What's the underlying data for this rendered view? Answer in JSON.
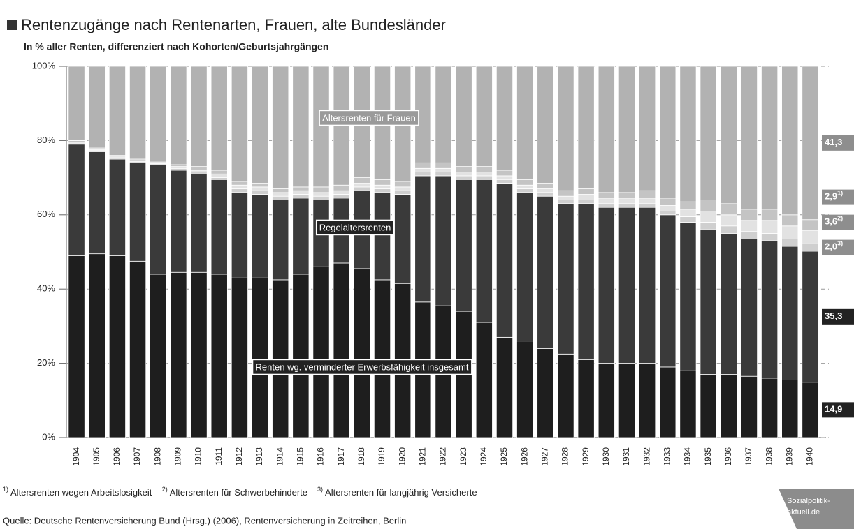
{
  "chart_data": {
    "type": "stacked_bar",
    "title": "Rentenzugänge nach Rentenarten, Frauen, alte Bundesländer",
    "subtitle": "In % aller Renten, differenziert nach Kohorten/Geburtsjahrgängen",
    "categories": [
      "1904",
      "1905",
      "1906",
      "1907",
      "1908",
      "1909",
      "1910",
      "1911",
      "1912",
      "1913",
      "1914",
      "1915",
      "1916",
      "1917",
      "1918",
      "1919",
      "1920",
      "1921",
      "1922",
      "1923",
      "1924",
      "1925",
      "1926",
      "1927",
      "1928",
      "1929",
      "1930",
      "1931",
      "1932",
      "1933",
      "1934",
      "1935",
      "1936",
      "1937",
      "1938",
      "1939",
      "1940"
    ],
    "ylim": [
      0,
      100
    ],
    "yticks": [
      {
        "value": 0,
        "label": "0%"
      },
      {
        "value": 20,
        "label": "20%"
      },
      {
        "value": 40,
        "label": "40%"
      },
      {
        "value": 60,
        "label": "60%"
      },
      {
        "value": 80,
        "label": "80%"
      },
      {
        "value": 100,
        "label": "100%"
      }
    ],
    "grid": true,
    "series": [
      {
        "name": "Renten wg. verminderter Erwerbsfähigkeit insgesamt",
        "color": "#1e1e1e",
        "values": [
          49,
          49.5,
          49,
          47.5,
          44,
          44.5,
          44.5,
          44,
          43,
          43,
          42.5,
          44,
          46,
          47,
          45.5,
          42.5,
          41.5,
          36.5,
          35.5,
          34,
          31,
          27,
          26,
          24,
          22.5,
          21,
          20,
          20,
          20,
          19,
          18,
          17,
          17,
          16.5,
          16,
          15.5,
          14.9
        ],
        "value_labels": [
          null,
          null,
          null,
          null,
          null,
          null,
          null,
          null,
          null,
          null,
          null,
          null,
          null,
          null,
          null,
          null,
          null,
          null,
          null,
          null,
          null,
          null,
          null,
          null,
          null,
          null,
          null,
          null,
          null,
          null,
          null,
          null,
          null,
          null,
          null,
          null,
          "14,9"
        ]
      },
      {
        "name": "Regelaltersrenten",
        "color": "#3a3a3a",
        "values": [
          30,
          27.5,
          26,
          26.5,
          29.5,
          27.5,
          26.5,
          25.5,
          23,
          22.5,
          21.5,
          20.5,
          18,
          17.5,
          21,
          23.5,
          24,
          34,
          35,
          35.5,
          38.5,
          41.5,
          40,
          41,
          40.5,
          42,
          42,
          42,
          42,
          41,
          40,
          39,
          38,
          37,
          37,
          36,
          35.3
        ],
        "value_labels": [
          null,
          null,
          null,
          null,
          null,
          null,
          null,
          null,
          null,
          null,
          null,
          null,
          null,
          null,
          null,
          null,
          null,
          null,
          null,
          null,
          null,
          null,
          null,
          null,
          null,
          null,
          null,
          null,
          null,
          null,
          null,
          null,
          null,
          null,
          null,
          null,
          "35,3"
        ]
      },
      {
        "name": "Altersrenten für langjährig Versicherte",
        "footnote": "3)",
        "color": "#cfcfcf",
        "values": [
          0.3,
          0.3,
          0.3,
          0.3,
          0.3,
          0.5,
          0.5,
          0.5,
          1,
          1,
          1,
          1,
          1,
          1,
          1,
          1,
          1,
          1,
          1,
          1,
          1,
          1,
          1,
          1,
          1,
          1,
          1,
          1,
          1,
          1,
          1.5,
          2,
          2,
          2,
          2,
          2,
          2.0
        ],
        "value_labels": [
          null,
          null,
          null,
          null,
          null,
          null,
          null,
          null,
          null,
          null,
          null,
          null,
          null,
          null,
          null,
          null,
          null,
          null,
          null,
          null,
          null,
          null,
          null,
          null,
          null,
          null,
          null,
          null,
          null,
          null,
          null,
          null,
          null,
          null,
          null,
          null,
          "2,0"
        ]
      },
      {
        "name": "Altersrenten für Schwerbehinderte",
        "footnote": "2)",
        "color": "#e2e2e2",
        "values": [
          0.3,
          0.3,
          0.3,
          0.3,
          0.3,
          0.5,
          0.5,
          1,
          1,
          1,
          1,
          1,
          1,
          1,
          1,
          1,
          1,
          1,
          1,
          1,
          1,
          1,
          1,
          1,
          1,
          1.5,
          1.5,
          1.5,
          1.5,
          1.5,
          2,
          3,
          3,
          3,
          3.5,
          3.5,
          3.6
        ],
        "value_labels": [
          null,
          null,
          null,
          null,
          null,
          null,
          null,
          null,
          null,
          null,
          null,
          null,
          null,
          null,
          null,
          null,
          null,
          null,
          null,
          null,
          null,
          null,
          null,
          null,
          null,
          null,
          null,
          null,
          null,
          null,
          null,
          null,
          null,
          null,
          null,
          null,
          "3,6"
        ]
      },
      {
        "name": "Altersrenten wegen Arbeitslosigkeit",
        "footnote": "1)",
        "color": "#c4c4c4",
        "values": [
          0.4,
          0.4,
          0.4,
          0.4,
          0.4,
          0.5,
          1,
          1,
          1,
          1,
          1,
          1,
          1.5,
          1.5,
          1.5,
          1.5,
          1.5,
          1.5,
          1.5,
          1.5,
          1.5,
          1.5,
          1.5,
          1.5,
          1.5,
          1.5,
          1.5,
          1.5,
          2,
          2,
          2,
          3,
          3,
          3,
          3,
          3,
          2.9
        ],
        "value_labels": [
          null,
          null,
          null,
          null,
          null,
          null,
          null,
          null,
          null,
          null,
          null,
          null,
          null,
          null,
          null,
          null,
          null,
          null,
          null,
          null,
          null,
          null,
          null,
          null,
          null,
          null,
          null,
          null,
          null,
          null,
          null,
          null,
          null,
          null,
          null,
          null,
          "2,9"
        ]
      },
      {
        "name": "Altersrenten für Frauen",
        "color": "#b2b2b2",
        "values": [
          20,
          22,
          24,
          25,
          25.5,
          26.5,
          27,
          28,
          31,
          31.5,
          33,
          32.5,
          32.5,
          32,
          30,
          30.5,
          31,
          26,
          26,
          27,
          27,
          28,
          30.5,
          31.5,
          33.5,
          33,
          34,
          34,
          33.5,
          35.5,
          36.5,
          36,
          37,
          38.5,
          38.5,
          40,
          41.3
        ],
        "value_labels": [
          null,
          null,
          null,
          null,
          null,
          null,
          null,
          null,
          null,
          null,
          null,
          null,
          null,
          null,
          null,
          null,
          null,
          null,
          null,
          null,
          null,
          null,
          null,
          null,
          null,
          null,
          null,
          null,
          null,
          null,
          null,
          null,
          null,
          null,
          null,
          null,
          "41,3"
        ]
      }
    ],
    "source": "Quelle: Deutsche Rentenversicherung Bund (Hrsg.) (2006), Rentenversicherung in Zeitreihen, Berlin",
    "logo": [
      "Sozialpolitik-",
      "aktuell.de"
    ]
  }
}
